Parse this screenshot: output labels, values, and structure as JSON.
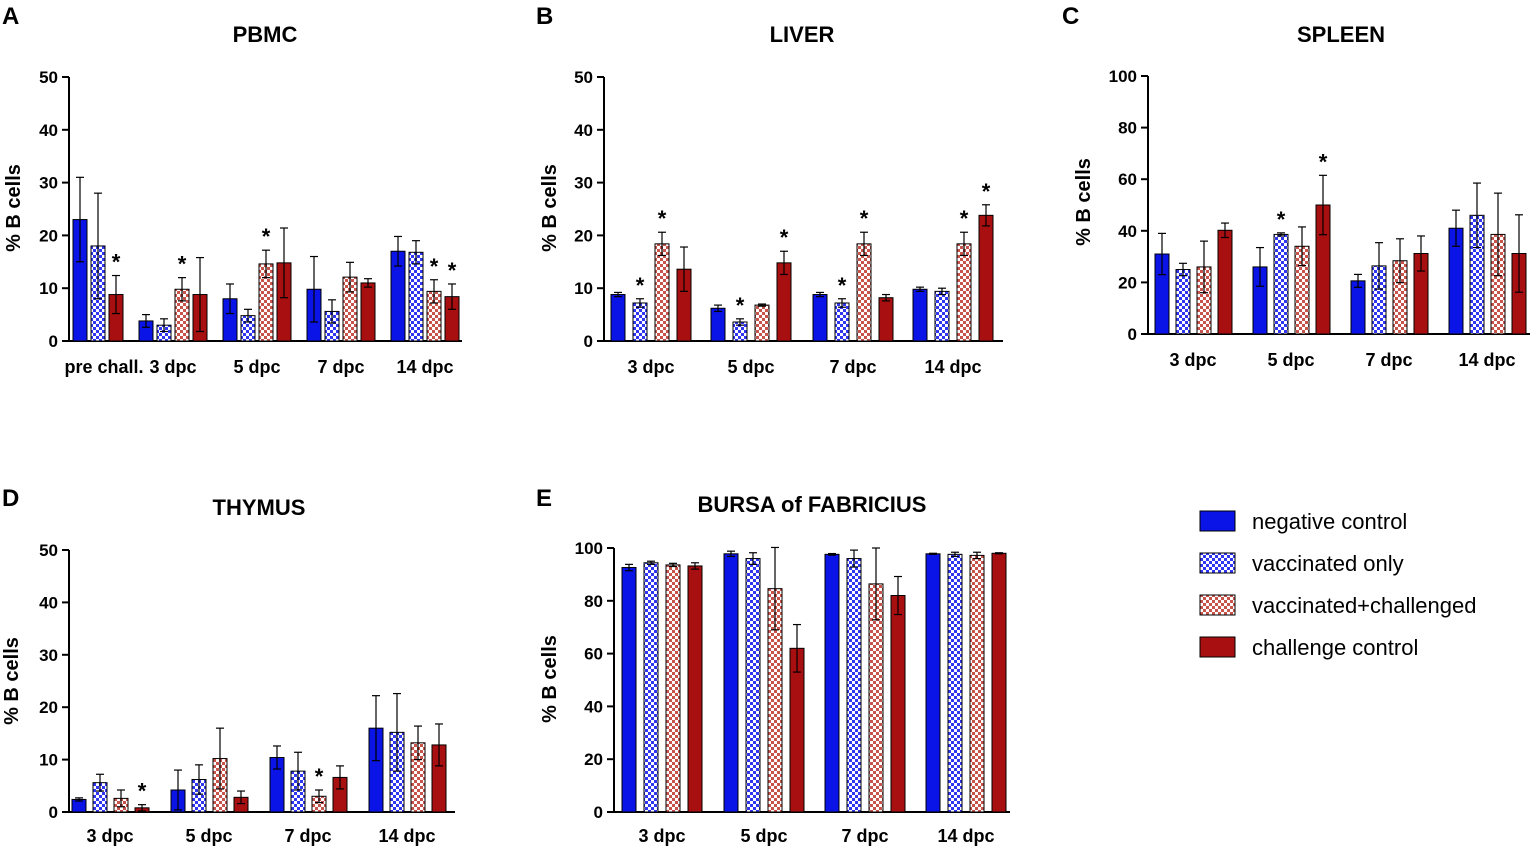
{
  "legend": [
    {
      "name": "negative control",
      "color": "#0a14e6",
      "pattern": "solid"
    },
    {
      "name": "vaccinated only",
      "color": "#3c3cff",
      "pattern": "check-blue"
    },
    {
      "name": "vaccinated+challenged",
      "color": "#d9756f",
      "pattern": "check-red"
    },
    {
      "name": "challenge control",
      "color": "#a80f10",
      "pattern": "solid"
    }
  ],
  "chart_data": [
    {
      "id": "A",
      "type": "bar",
      "title": "PBMC",
      "ylabel": "% B cells",
      "xlabel": "",
      "ylim": [
        0,
        50
      ],
      "yticks": [
        0,
        10,
        20,
        30,
        40,
        50
      ],
      "categories": [
        "pre chall.",
        "3 dpc",
        "5 dpc",
        "7 dpc",
        "14 dpc"
      ],
      "series": [
        {
          "name": "negative control",
          "values": [
            23,
            3.8,
            8,
            9.8,
            17
          ],
          "errors": [
            8,
            1.2,
            2.8,
            6.2,
            2.8
          ],
          "stars": [
            false,
            false,
            false,
            false,
            false
          ]
        },
        {
          "name": "vaccinated only",
          "values": [
            18,
            3,
            4.8,
            5.6,
            16.8
          ],
          "errors": [
            10,
            1.2,
            1.2,
            2.2,
            2.2
          ],
          "stars": [
            false,
            false,
            false,
            false,
            false
          ]
        },
        {
          "name": "vaccinated+challenged",
          "values": null,
          "errors": null,
          "stars": null
        },
        {
          "name": "challenge control",
          "values": [
            8.8,
            8.8,
            14.8,
            11,
            8.4
          ],
          "errors": [
            3.6,
            7,
            6.6,
            0.8,
            2.4
          ],
          "stars": [
            true,
            false,
            false,
            false,
            true
          ]
        }
      ],
      "vc": {
        "values": [
          null,
          9.8,
          14.6,
          12.1,
          9.4
        ],
        "errors": [
          null,
          2.2,
          2.6,
          2.8,
          2.2
        ],
        "stars": [
          false,
          true,
          true,
          false,
          true
        ]
      }
    },
    {
      "id": "B",
      "type": "bar",
      "title": "LIVER",
      "ylabel": "% B cells",
      "xlabel": "",
      "ylim": [
        0,
        50
      ],
      "yticks": [
        0,
        10,
        20,
        30,
        40,
        50
      ],
      "categories": [
        "3 dpc",
        "5 dpc",
        "7 dpc",
        "14 dpc"
      ],
      "series": [
        {
          "name": "negative control",
          "values": [
            8.8,
            6.2,
            8.8,
            9.8
          ],
          "errors": [
            0.4,
            0.6,
            0.4,
            0.4
          ],
          "stars": [
            false,
            false,
            false,
            false
          ]
        },
        {
          "name": "vaccinated only",
          "values": [
            7.2,
            3.6,
            7.2,
            9.4
          ],
          "errors": [
            0.8,
            0.6,
            0.8,
            0.6
          ],
          "stars": [
            true,
            true,
            true,
            false
          ]
        },
        {
          "name": "vaccinated+challenged",
          "values": [
            18.4,
            6.8,
            18.4,
            18.4
          ],
          "errors": [
            2.2,
            0.2,
            2.2,
            2.2
          ],
          "stars": [
            true,
            false,
            true,
            true
          ]
        },
        {
          "name": "challenge control",
          "values": [
            13.6,
            14.8,
            8.2,
            23.8
          ],
          "errors": [
            4.2,
            2.2,
            0.6,
            2
          ],
          "stars": [
            false,
            true,
            false,
            true
          ]
        }
      ]
    },
    {
      "id": "C",
      "type": "bar",
      "title": "SPLEEN",
      "ylabel": "% B cells",
      "xlabel": "",
      "ylim": [
        0,
        100
      ],
      "yticks": [
        0,
        20,
        40,
        60,
        80,
        100
      ],
      "categories": [
        "3 dpc",
        "5 dpc",
        "7 dpc",
        "14 dpc"
      ],
      "series": [
        {
          "name": "negative control",
          "values": [
            31,
            26,
            20.6,
            41
          ],
          "errors": [
            8,
            7.5,
            2.5,
            7
          ],
          "stars": [
            false,
            false,
            false,
            false
          ]
        },
        {
          "name": "vaccinated only",
          "values": [
            25,
            38.6,
            26.4,
            46
          ],
          "errors": [
            2.4,
            0.6,
            9,
            12.5
          ],
          "stars": [
            false,
            true,
            false,
            false
          ]
        },
        {
          "name": "vaccinated+challenged",
          "values": [
            26,
            34,
            28.4,
            38.6
          ],
          "errors": [
            10,
            7.5,
            8.5,
            16
          ],
          "stars": [
            false,
            false,
            false,
            false
          ]
        },
        {
          "name": "challenge control",
          "values": [
            40.2,
            50,
            31.2,
            31.2
          ],
          "errors": [
            2.8,
            11.5,
            6.8,
            15
          ],
          "stars": [
            false,
            true,
            false,
            false
          ]
        }
      ]
    },
    {
      "id": "D",
      "type": "bar",
      "title": "THYMUS",
      "ylabel": "% B cells",
      "xlabel": "",
      "ylim": [
        0,
        50
      ],
      "yticks": [
        0,
        10,
        20,
        30,
        40,
        50
      ],
      "categories": [
        "3 dpc",
        "5 dpc",
        "7 dpc",
        "14 dpc"
      ],
      "series": [
        {
          "name": "negative control",
          "values": [
            2.4,
            4.2,
            10.4,
            16
          ],
          "errors": [
            0.3,
            3.8,
            2.2,
            6.2
          ],
          "stars": [
            false,
            false,
            false,
            false
          ]
        },
        {
          "name": "vaccinated only",
          "values": [
            5.6,
            6.2,
            7.8,
            15.2
          ],
          "errors": [
            1.6,
            2.8,
            3.6,
            7.4
          ],
          "stars": [
            false,
            false,
            false,
            false
          ]
        },
        {
          "name": "vaccinated+challenged",
          "values": [
            2.6,
            10.2,
            3,
            13.2
          ],
          "errors": [
            1.6,
            5.8,
            1.2,
            3.2
          ],
          "stars": [
            false,
            false,
            true,
            false
          ]
        },
        {
          "name": "challenge control",
          "values": [
            0.8,
            2.8,
            6.6,
            12.8
          ],
          "errors": [
            0.6,
            1.2,
            2.2,
            4
          ],
          "stars": [
            true,
            false,
            false,
            false
          ]
        }
      ]
    },
    {
      "id": "E",
      "type": "bar",
      "title": "BURSA of FABRICIUS",
      "ylabel": "% B cells",
      "xlabel": "",
      "ylim": [
        0,
        100
      ],
      "yticks": [
        0,
        20,
        40,
        60,
        80,
        100
      ],
      "categories": [
        "3 dpc",
        "5 dpc",
        "7 dpc",
        "14 dpc"
      ],
      "series": [
        {
          "name": "negative control",
          "values": [
            92.6,
            97.8,
            97.6,
            97.8
          ],
          "errors": [
            1.2,
            1,
            0.3,
            0.2
          ],
          "stars": [
            false,
            false,
            false,
            false
          ]
        },
        {
          "name": "vaccinated only",
          "values": [
            94.4,
            96,
            96,
            97.6
          ],
          "errors": [
            0.6,
            2.2,
            3.2,
            0.8
          ],
          "stars": [
            false,
            false,
            false,
            false
          ]
        },
        {
          "name": "vaccinated+challenged",
          "values": [
            93.6,
            84.6,
            86.4,
            97.2
          ],
          "errors": [
            0.6,
            15.6,
            13.6,
            1.2
          ],
          "stars": [
            false,
            false,
            false,
            false
          ]
        },
        {
          "name": "challenge control",
          "values": [
            93.2,
            62,
            82,
            98
          ],
          "errors": [
            1.2,
            9,
            7.2,
            0.2
          ],
          "stars": [
            false,
            false,
            false,
            false
          ]
        }
      ]
    }
  ]
}
